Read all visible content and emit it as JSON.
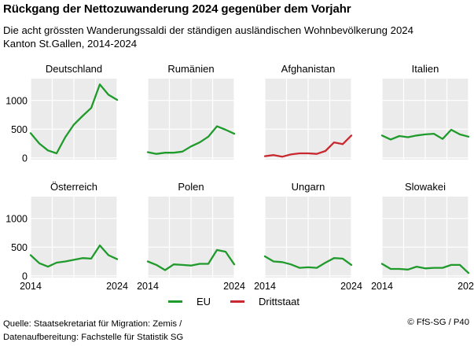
{
  "title": "Rückgang der Nettozuwanderung 2024 gegenüber dem Vorjahr",
  "subtitle_line1": "Die acht grössten Wanderungssaldi der ständigen ausländischen Wohnbevölkerung 2024",
  "subtitle_line2": "Kanton St.Gallen, 2014-2024",
  "legend": [
    {
      "label": "EU",
      "color": "#1f9a2b"
    },
    {
      "label": "Drittstaat",
      "color": "#c8282e"
    }
  ],
  "source_line1": "Quelle: Staatsekretariat für Migration: Zemis /",
  "source_line2": "Datenaufbereitung: Fachstelle für Statistik SG",
  "credit": "© FfS-SG / P40",
  "chart_data": {
    "type": "line",
    "x": [
      2014,
      2015,
      2016,
      2017,
      2018,
      2019,
      2020,
      2021,
      2022,
      2023,
      2024
    ],
    "ylim": [
      -30,
      1380
    ],
    "yticks": [
      0,
      500,
      1000
    ],
    "xticks": [
      2014,
      2024
    ],
    "grid": true,
    "legend_placement": "bottom",
    "panels": [
      {
        "name": "Deutschland",
        "category": "EU",
        "values": [
          430,
          250,
          130,
          80,
          360,
          580,
          730,
          870,
          1280,
          1100,
          1010
        ]
      },
      {
        "name": "Rumänien",
        "category": "EU",
        "values": [
          100,
          70,
          90,
          90,
          110,
          200,
          270,
          370,
          550,
          490,
          420
        ]
      },
      {
        "name": "Afghanistan",
        "category": "Drittstaat",
        "values": [
          30,
          50,
          20,
          60,
          80,
          80,
          70,
          120,
          270,
          240,
          390
        ]
      },
      {
        "name": "Italien",
        "category": "EU",
        "values": [
          390,
          320,
          380,
          360,
          390,
          410,
          420,
          330,
          490,
          410,
          370
        ]
      },
      {
        "name": "Österreich",
        "category": "EU",
        "values": [
          360,
          220,
          160,
          230,
          250,
          280,
          310,
          300,
          530,
          360,
          290
        ]
      },
      {
        "name": "Polen",
        "category": "EU",
        "values": [
          250,
          190,
          100,
          200,
          190,
          180,
          210,
          210,
          450,
          420,
          200
        ]
      },
      {
        "name": "Ungarn",
        "category": "EU",
        "values": [
          340,
          250,
          240,
          200,
          140,
          150,
          140,
          230,
          310,
          300,
          190
        ]
      },
      {
        "name": "Slowakei",
        "category": "EU",
        "values": [
          210,
          120,
          120,
          110,
          160,
          130,
          140,
          140,
          190,
          190,
          50
        ]
      }
    ]
  }
}
